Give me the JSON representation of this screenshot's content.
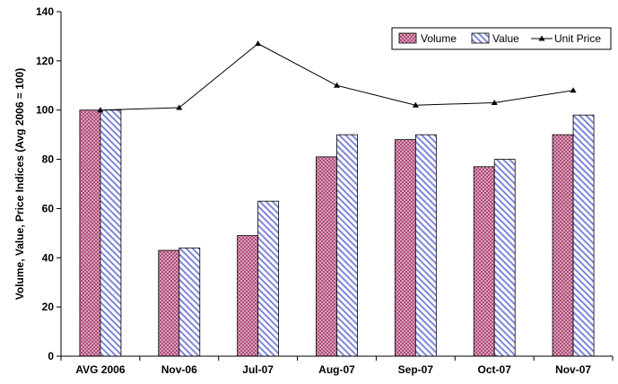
{
  "chart_data": {
    "type": "bar",
    "title": "",
    "xlabel": "",
    "ylabel": "Volume, Value, Price Indices (Avg 2006 = 100)",
    "ylim": [
      0,
      140
    ],
    "yticks": [
      0,
      20,
      40,
      60,
      80,
      100,
      120,
      140
    ],
    "grid": false,
    "legend_position": "top-right",
    "categories": [
      "AVG 2006",
      "Nov-06",
      "Jul-07",
      "Aug-07",
      "Sep-07",
      "Oct-07",
      "Nov-07"
    ],
    "series": [
      {
        "name": "Volume",
        "type": "bar",
        "pattern": "dotted",
        "color": "#8b2a55",
        "values": [
          100,
          43,
          49,
          81,
          88,
          77,
          90
        ]
      },
      {
        "name": "Value",
        "type": "bar",
        "pattern": "diagonal-stripes",
        "color": "#7f86d8",
        "values": [
          100,
          44,
          63,
          90,
          90,
          80,
          98
        ]
      },
      {
        "name": "Unit Price",
        "type": "line",
        "marker": "triangle",
        "color": "#000000",
        "values": [
          100,
          101,
          127,
          110,
          102,
          103,
          108
        ]
      }
    ]
  }
}
